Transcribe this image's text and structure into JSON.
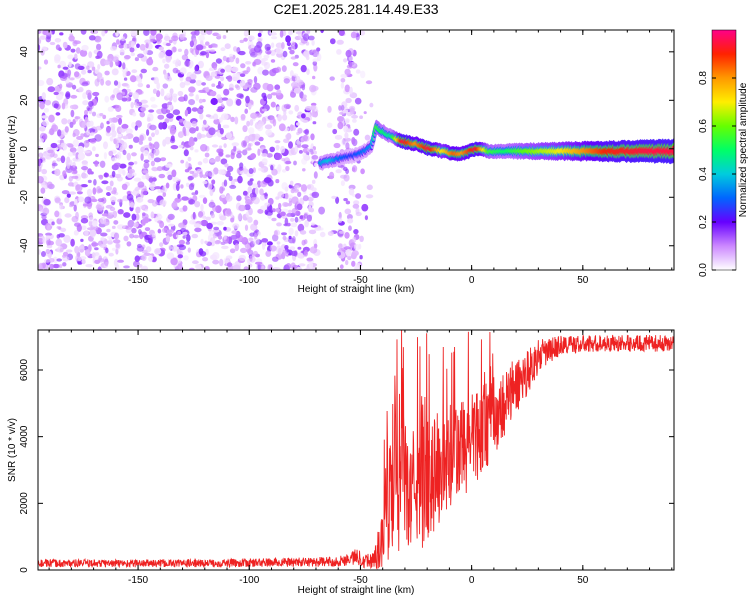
{
  "title": "C2E1.2025.281.14.49.E33",
  "chart_data": [
    {
      "type": "heatmap",
      "title": "C2E1.2025.281.14.49.E33",
      "xlabel": "Height of straight line (km)",
      "ylabel": "Frequency (Hz)",
      "xlim": [
        -195,
        91
      ],
      "ylim": [
        -50,
        49
      ],
      "xticks": [
        -150,
        -100,
        -50,
        0,
        50
      ],
      "yticks": [
        -40,
        -20,
        0,
        20,
        40
      ],
      "colorbar": {
        "label": "Normalized spectral amplitude",
        "range": [
          0,
          1
        ],
        "ticks": [
          "0.0",
          "0.2",
          "0.4",
          "0.6",
          "0.8"
        ],
        "tick_values": [
          0,
          0.2,
          0.4,
          0.6,
          0.8
        ]
      },
      "noise_region": {
        "x_range": [
          -195,
          -51
        ],
        "amplitude_range": [
          0.02,
          0.18
        ]
      },
      "signal_ridge": {
        "description": "Coherent dominant-frequency ridge",
        "points": [
          {
            "x": -68,
            "f": -6,
            "a": 0.35
          },
          {
            "x": -64,
            "f": -5,
            "a": 0.4
          },
          {
            "x": -60,
            "f": -4,
            "a": 0.32
          },
          {
            "x": -54,
            "f": -3,
            "a": 0.25
          },
          {
            "x": -50,
            "f": -2,
            "a": 0.3
          },
          {
            "x": -45,
            "f": 1,
            "a": 0.35
          },
          {
            "x": -43,
            "f": 9,
            "a": 0.55
          },
          {
            "x": -40,
            "f": 7,
            "a": 0.5
          },
          {
            "x": -36,
            "f": 5,
            "a": 0.45
          },
          {
            "x": -31,
            "f": 3,
            "a": 0.95
          },
          {
            "x": -25,
            "f": 2,
            "a": 0.8
          },
          {
            "x": -19,
            "f": 0,
            "a": 0.95
          },
          {
            "x": -13,
            "f": -1,
            "a": 0.7
          },
          {
            "x": -8,
            "f": -2,
            "a": 0.85
          },
          {
            "x": -4,
            "f": -2,
            "a": 0.8
          },
          {
            "x": 2,
            "f": 0,
            "a": 0.95
          },
          {
            "x": 8,
            "f": -1,
            "a": 0.55
          },
          {
            "x": 15,
            "f": -1,
            "a": 0.5
          },
          {
            "x": 25,
            "f": -1,
            "a": 0.6
          },
          {
            "x": 40,
            "f": -1,
            "a": 0.7
          },
          {
            "x": 60,
            "f": -1,
            "a": 0.9
          },
          {
            "x": 80,
            "f": -1,
            "a": 0.95
          },
          {
            "x": 91,
            "f": -1,
            "a": 0.95
          }
        ]
      }
    },
    {
      "type": "line",
      "xlabel": "Height of straight line (km)",
      "ylabel": "SNR (10 * v/v)",
      "xlim": [
        -195,
        91
      ],
      "ylim": [
        0,
        7200
      ],
      "xticks": [
        -150,
        -100,
        -50,
        0,
        50
      ],
      "yticks": [
        0,
        2000,
        4000,
        6000
      ],
      "series": [
        {
          "color": "#ee2222",
          "envelope": [
            {
              "x": -195,
              "base": 200,
              "noise": 120
            },
            {
              "x": -120,
              "base": 200,
              "noise": 120
            },
            {
              "x": -60,
              "base": 250,
              "noise": 150
            },
            {
              "x": -52,
              "base": 400,
              "noise": 250
            },
            {
              "x": -45,
              "base": 250,
              "noise": 250
            },
            {
              "x": -40,
              "base": 800,
              "noise": 900
            },
            {
              "x": -37,
              "base": 2500,
              "noise": 2500
            },
            {
              "x": -33,
              "base": 3000,
              "noise": 2500
            },
            {
              "x": -28,
              "base": 2200,
              "noise": 1500
            },
            {
              "x": -22,
              "base": 3000,
              "noise": 2400
            },
            {
              "x": -15,
              "base": 3000,
              "noise": 1800
            },
            {
              "x": -8,
              "base": 3400,
              "noise": 1600
            },
            {
              "x": 0,
              "base": 3900,
              "noise": 1500
            },
            {
              "x": 10,
              "base": 4600,
              "noise": 1200
            },
            {
              "x": 20,
              "base": 5500,
              "noise": 900
            },
            {
              "x": 30,
              "base": 6400,
              "noise": 500
            },
            {
              "x": 40,
              "base": 6750,
              "noise": 300
            },
            {
              "x": 60,
              "base": 6800,
              "noise": 250
            },
            {
              "x": 91,
              "base": 6800,
              "noise": 250
            }
          ]
        }
      ]
    }
  ]
}
